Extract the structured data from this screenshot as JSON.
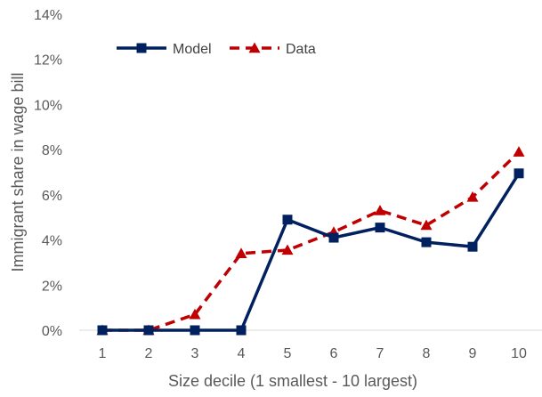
{
  "chart_data": {
    "type": "line",
    "title": "",
    "xlabel": "Size decile (1 smallest - 10 largest)",
    "ylabel": "Immigrant share in wage bill",
    "categories": [
      "1",
      "2",
      "3",
      "4",
      "5",
      "6",
      "7",
      "8",
      "9",
      "10"
    ],
    "y_ticks": [
      "0%",
      "2%",
      "4%",
      "6%",
      "8%",
      "10%",
      "12%",
      "14%"
    ],
    "ylim": [
      0,
      14
    ],
    "grid": false,
    "legend_position": "top-left",
    "series": [
      {
        "name": "Model",
        "color": "#002060",
        "marker": "square",
        "line": "solid",
        "values": [
          0.0,
          0.0,
          0.0,
          0.0,
          4.9,
          4.1,
          4.55,
          3.9,
          3.7,
          6.95
        ]
      },
      {
        "name": "Data",
        "color": "#C00000",
        "marker": "triangle",
        "line": "dashed",
        "values": [
          0.0,
          0.0,
          0.7,
          3.4,
          3.55,
          4.35,
          5.3,
          4.65,
          5.9,
          7.9
        ]
      }
    ]
  }
}
